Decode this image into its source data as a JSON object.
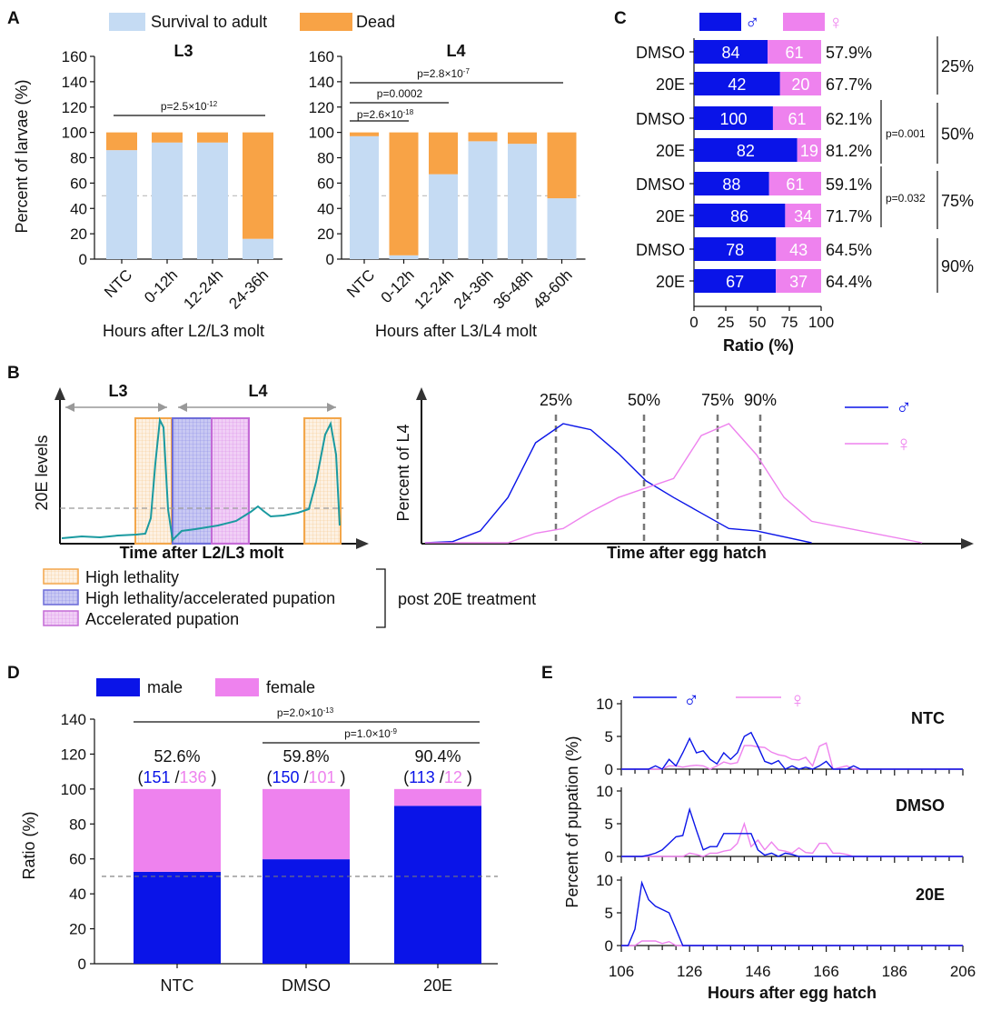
{
  "colors": {
    "survival": "#c5dbf3",
    "dead": "#f8a346",
    "male": "#0a14e8",
    "female": "#ee82ee",
    "teal": "#1a9aa0",
    "orange_box": "#f3a64a",
    "blue_box": "#6d6dd8",
    "purple_box": "#c46bd6",
    "grey": "#999999"
  },
  "chart_data": [
    {
      "panel": "A",
      "type": "bar",
      "stacked": true,
      "panel_label": "A",
      "legend": [
        "Survival to adult",
        "Dead"
      ],
      "legend_position": "top",
      "ylabel": "Percent of larvae (%)",
      "ylim": [
        0,
        160
      ],
      "yticks": [
        0,
        20,
        40,
        60,
        80,
        100,
        120,
        140,
        160
      ],
      "subplots": [
        {
          "title": "L3",
          "xlabel": "Hours after L2/L3 molt",
          "categories": [
            "NTC",
            "0-12h",
            "12-24h",
            "24-36h"
          ],
          "series": [
            {
              "name": "Survival to adult",
              "values": [
                86,
                92,
                92,
                16
              ]
            },
            {
              "name": "Dead",
              "values": [
                14,
                8,
                8,
                84
              ]
            }
          ],
          "pvalues": [
            {
              "text": "p=2.5×10",
              "exp": "-12"
            }
          ]
        },
        {
          "title": "L4",
          "xlabel": "Hours after L3/L4 molt",
          "categories": [
            "NTC",
            "0-12h",
            "12-24h",
            "24-36h",
            "36-48h",
            "48-60h"
          ],
          "series": [
            {
              "name": "Survival to adult",
              "values": [
                97,
                3,
                67,
                93,
                91,
                48
              ]
            },
            {
              "name": "Dead",
              "values": [
                3,
                97,
                33,
                7,
                9,
                52
              ]
            }
          ],
          "pvalues": [
            {
              "text": "p=2.8×10",
              "exp": "-7"
            },
            {
              "text": "p=0.0002",
              "exp": ""
            },
            {
              "text": "p=2.6×10",
              "exp": "-18"
            }
          ]
        }
      ]
    },
    {
      "panel": "C",
      "type": "bar",
      "orientation": "horizontal",
      "stacked": true,
      "panel_label": "C",
      "legend": [
        "♂",
        "♀"
      ],
      "xlabel": "Ratio (%)",
      "xlim": [
        0,
        100
      ],
      "xticks": [
        0,
        25,
        50,
        75,
        100
      ],
      "rows": [
        {
          "label": "DMSO",
          "male": 84,
          "female": 61,
          "pct_male": 57.9,
          "pct": "57.9%"
        },
        {
          "label": "20E",
          "male": 42,
          "female": 20,
          "pct_male": 67.7,
          "pct": "67.7%"
        },
        {
          "label": "DMSO",
          "male": 100,
          "female": 61,
          "pct_male": 62.1,
          "pct": "62.1%"
        },
        {
          "label": "20E",
          "male": 82,
          "female": 19,
          "pct_male": 81.2,
          "pct": "81.2%"
        },
        {
          "label": "DMSO",
          "male": 88,
          "female": 61,
          "pct_male": 59.1,
          "pct": "59.1%"
        },
        {
          "label": "20E",
          "male": 86,
          "female": 34,
          "pct_male": 71.7,
          "pct": "71.7%"
        },
        {
          "label": "DMSO",
          "male": 78,
          "female": 43,
          "pct_male": 64.5,
          "pct": "64.5%"
        },
        {
          "label": "20E",
          "male": 67,
          "female": 37,
          "pct_male": 64.4,
          "pct": "64.4%"
        }
      ],
      "groups": [
        "25%",
        "50%",
        "75%",
        "90%"
      ],
      "pvalues": [
        "p=0.001",
        "p=0.032"
      ]
    },
    {
      "panel": "B",
      "type": "line",
      "panel_label": "B",
      "left": {
        "ylabel": "20E levels",
        "xlabel": "Time after L2/L3 molt",
        "stages": [
          "L3",
          "L4"
        ],
        "legend": [
          "High lethality",
          "High lethality/accelerated pupation",
          "Accelerated pupation"
        ],
        "bracket_label": "post 20E treatment"
      },
      "right": {
        "ylabel": "Percent of L4",
        "xlabel": "Time after egg hatch",
        "markers": [
          "25%",
          "50%",
          "75%",
          "90%"
        ],
        "legend": [
          "♂",
          "♀"
        ],
        "male": [
          [
            0,
            0
          ],
          [
            8,
            0.01
          ],
          [
            16,
            0.1
          ],
          [
            24,
            0.38
          ],
          [
            32,
            0.84
          ],
          [
            40,
            1.0
          ],
          [
            48,
            0.95
          ],
          [
            56,
            0.75
          ],
          [
            64,
            0.52
          ],
          [
            72,
            0.38
          ],
          [
            80,
            0.25
          ],
          [
            88,
            0.12
          ],
          [
            96,
            0.1
          ],
          [
            112,
            0
          ]
        ],
        "female": [
          [
            0,
            0
          ],
          [
            24,
            0
          ],
          [
            32,
            0.08
          ],
          [
            40,
            0.12
          ],
          [
            48,
            0.26
          ],
          [
            56,
            0.38
          ],
          [
            64,
            0.46
          ],
          [
            72,
            0.54
          ],
          [
            80,
            0.9
          ],
          [
            88,
            1.0
          ],
          [
            96,
            0.74
          ],
          [
            104,
            0.38
          ],
          [
            112,
            0.18
          ],
          [
            128,
            0.09
          ],
          [
            144,
            0
          ]
        ]
      }
    },
    {
      "panel": "D",
      "type": "bar",
      "stacked": true,
      "panel_label": "D",
      "legend": [
        "male",
        "female"
      ],
      "legend_position": "top",
      "ylabel": "Ratio (%)",
      "ylim": [
        0,
        140
      ],
      "yticks": [
        0,
        20,
        40,
        60,
        80,
        100,
        120,
        140
      ],
      "categories": [
        "NTC",
        "DMSO",
        "20E"
      ],
      "series": [
        {
          "name": "male",
          "values": [
            52.6,
            59.8,
            90.4
          ]
        },
        {
          "name": "female",
          "values": [
            47.4,
            40.2,
            9.6
          ]
        }
      ],
      "labels": [
        {
          "pct": "52.6%",
          "male": "151",
          "female": "136"
        },
        {
          "pct": "59.8%",
          "male": "150",
          "female": "101"
        },
        {
          "pct": "90.4%",
          "male": "113",
          "female": "12"
        }
      ],
      "pvalues": [
        {
          "text": "p=2.0×10",
          "exp": "-13"
        },
        {
          "text": "p=1.0×10",
          "exp": "-9"
        }
      ]
    },
    {
      "panel": "E",
      "type": "line",
      "panel_label": "E",
      "ylabel": "Percent of pupation (%)",
      "xlabel": "Hours after egg hatch",
      "xlim": [
        106,
        206
      ],
      "xticks": [
        106,
        126,
        146,
        166,
        186,
        206
      ],
      "ylim": [
        0,
        10
      ],
      "yticks": [
        0,
        5,
        10
      ],
      "legend": [
        "♂",
        "♀"
      ],
      "subplots": [
        {
          "title": "NTC",
          "male": [
            [
              106,
              0
            ],
            [
              110,
              0
            ],
            [
              114,
              0
            ],
            [
              116,
              0.5
            ],
            [
              118,
              0
            ],
            [
              120,
              1.5
            ],
            [
              122,
              0.5
            ],
            [
              124,
              2.5
            ],
            [
              126,
              4.7
            ],
            [
              128,
              2.5
            ],
            [
              130,
              2.8
            ],
            [
              132,
              1.5
            ],
            [
              134,
              0.8
            ],
            [
              136,
              2.5
            ],
            [
              138,
              1.5
            ],
            [
              140,
              2.5
            ],
            [
              142,
              5.0
            ],
            [
              144,
              5.6
            ],
            [
              146,
              3.5
            ],
            [
              148,
              1.2
            ],
            [
              150,
              0.8
            ],
            [
              152,
              1.3
            ],
            [
              154,
              0
            ],
            [
              156,
              0.5
            ],
            [
              158,
              0
            ],
            [
              160,
              0.3
            ],
            [
              162,
              0
            ],
            [
              164,
              0.5
            ],
            [
              166,
              1.2
            ],
            [
              168,
              0
            ],
            [
              170,
              0
            ],
            [
              172,
              0
            ],
            [
              174,
              0.5
            ],
            [
              176,
              0
            ],
            [
              206,
              0
            ]
          ],
          "female": [
            [
              106,
              0
            ],
            [
              118,
              0
            ],
            [
              120,
              0.5
            ],
            [
              122,
              0.5
            ],
            [
              124,
              0.3
            ],
            [
              126,
              0.5
            ],
            [
              128,
              0.6
            ],
            [
              130,
              0.5
            ],
            [
              132,
              0
            ],
            [
              134,
              0.5
            ],
            [
              136,
              1.1
            ],
            [
              138,
              0.8
            ],
            [
              140,
              1.0
            ],
            [
              142,
              3.6
            ],
            [
              144,
              3.6
            ],
            [
              146,
              3.4
            ],
            [
              148,
              3.3
            ],
            [
              150,
              2.6
            ],
            [
              152,
              2.2
            ],
            [
              154,
              2.0
            ],
            [
              156,
              1.5
            ],
            [
              158,
              1.4
            ],
            [
              160,
              1.8
            ],
            [
              162,
              0.5
            ],
            [
              164,
              3.5
            ],
            [
              166,
              4.0
            ],
            [
              168,
              0
            ],
            [
              172,
              0.5
            ],
            [
              174,
              0
            ],
            [
              206,
              0
            ]
          ]
        },
        {
          "title": "DMSO",
          "male": [
            [
              106,
              0
            ],
            [
              112,
              0
            ],
            [
              114,
              0.2
            ],
            [
              116,
              0.5
            ],
            [
              118,
              1.0
            ],
            [
              120,
              2.0
            ],
            [
              122,
              3.0
            ],
            [
              124,
              3.2
            ],
            [
              126,
              7.2
            ],
            [
              128,
              4.0
            ],
            [
              130,
              1.0
            ],
            [
              132,
              1.5
            ],
            [
              134,
              1.5
            ],
            [
              136,
              3.5
            ],
            [
              138,
              3.5
            ],
            [
              140,
              3.5
            ],
            [
              142,
              3.5
            ],
            [
              144,
              3.5
            ],
            [
              146,
              1.0
            ],
            [
              148,
              0.2
            ],
            [
              150,
              0.5
            ],
            [
              152,
              0
            ],
            [
              154,
              0.5
            ],
            [
              156,
              0.3
            ],
            [
              158,
              0
            ],
            [
              206,
              0
            ]
          ],
          "female": [
            [
              106,
              0
            ],
            [
              124,
              0
            ],
            [
              126,
              0.5
            ],
            [
              128,
              0.3
            ],
            [
              130,
              0
            ],
            [
              132,
              0.5
            ],
            [
              134,
              0.5
            ],
            [
              136,
              0.8
            ],
            [
              138,
              1.0
            ],
            [
              140,
              2.0
            ],
            [
              142,
              5.0
            ],
            [
              144,
              1.5
            ],
            [
              146,
              2.5
            ],
            [
              148,
              1.0
            ],
            [
              150,
              2.2
            ],
            [
              152,
              1.0
            ],
            [
              154,
              0.8
            ],
            [
              156,
              0.5
            ],
            [
              158,
              1.3
            ],
            [
              160,
              0.6
            ],
            [
              162,
              0.5
            ],
            [
              164,
              2.0
            ],
            [
              166,
              2.0
            ],
            [
              168,
              0.5
            ],
            [
              170,
              0.5
            ],
            [
              172,
              0.3
            ],
            [
              174,
              0
            ],
            [
              206,
              0
            ]
          ]
        },
        {
          "title": "20E",
          "male": [
            [
              106,
              0
            ],
            [
              108,
              0
            ],
            [
              110,
              2.5
            ],
            [
              112,
              9.6
            ],
            [
              114,
              7.0
            ],
            [
              116,
              6.0
            ],
            [
              118,
              5.5
            ],
            [
              120,
              5.0
            ],
            [
              122,
              2.5
            ],
            [
              124,
              0
            ],
            [
              206,
              0
            ]
          ],
          "female": [
            [
              106,
              0
            ],
            [
              108,
              0
            ],
            [
              110,
              0
            ],
            [
              112,
              0.7
            ],
            [
              114,
              0.7
            ],
            [
              116,
              0.7
            ],
            [
              118,
              0.3
            ],
            [
              120,
              0.6
            ],
            [
              122,
              0
            ],
            [
              206,
              0
            ]
          ]
        }
      ]
    }
  ]
}
